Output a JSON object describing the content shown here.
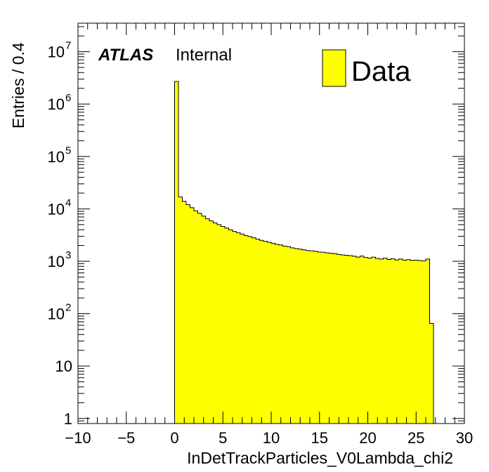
{
  "chart_data": {
    "type": "bar",
    "style": "step-histogram",
    "xlabel": "InDetTrackParticles_V0Lambda_chi2",
    "ylabel": "Entries / 0.4",
    "xlim": [
      -10,
      30
    ],
    "ylim": [
      0.8,
      35000000
    ],
    "log_y": true,
    "grid": false,
    "x_ticks": [
      -10,
      -5,
      0,
      5,
      10,
      15,
      20,
      25,
      30
    ],
    "x_tick_labels": [
      "−10",
      "−5",
      "0",
      "5",
      "10",
      "15",
      "20",
      "25",
      "30"
    ],
    "y_ticks": [
      {
        "value": 1,
        "base": "1",
        "exp": ""
      },
      {
        "value": 10,
        "base": "10",
        "exp": ""
      },
      {
        "value": 100,
        "base": "10",
        "exp": "2"
      },
      {
        "value": 1000,
        "base": "10",
        "exp": "3"
      },
      {
        "value": 10000,
        "base": "10",
        "exp": "4"
      },
      {
        "value": 100000,
        "base": "10",
        "exp": "5"
      },
      {
        "value": 1000000,
        "base": "10",
        "exp": "6"
      },
      {
        "value": 10000000,
        "base": "10",
        "exp": "7"
      }
    ],
    "bin_width": 0.4,
    "bin_start": 0,
    "series": [
      {
        "name": "Data",
        "color": "#ffff00",
        "values": [
          2700000,
          17000,
          14000,
          12000,
          10500,
          9200,
          8200,
          7300,
          6500,
          5900,
          5400,
          5000,
          4600,
          4300,
          4000,
          3700,
          3500,
          3300,
          3100,
          2950,
          2800,
          2650,
          2500,
          2400,
          2300,
          2200,
          2100,
          2050,
          1950,
          1900,
          1800,
          1750,
          1700,
          1650,
          1600,
          1580,
          1550,
          1500,
          1480,
          1450,
          1420,
          1400,
          1350,
          1320,
          1300,
          1280,
          1250,
          1200,
          1260,
          1180,
          1150,
          1200,
          1130,
          1100,
          1150,
          1080,
          1120,
          1060,
          1100,
          1050,
          1070,
          1040,
          1050,
          1030,
          1020,
          1100,
          65
        ]
      }
    ],
    "legend": {
      "position": "top-right",
      "label": "Data"
    },
    "annotation": {
      "bold": "ATLAS",
      "normal": "Internal"
    }
  }
}
